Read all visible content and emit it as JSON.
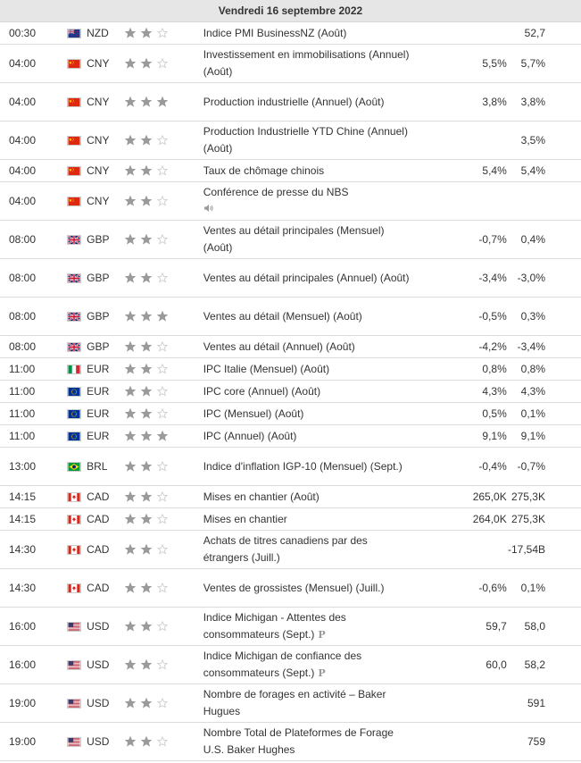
{
  "date_header": "Vendredi 16 septembre 2022",
  "colors": {
    "star_on": "#9a9a9a",
    "star_off": "#cfcfcf"
  },
  "events": [
    {
      "time": "00:30",
      "currency": "NZD",
      "flag": "nz",
      "importance": 2,
      "title": "Indice PMI BusinessNZ (Août)",
      "actual": "",
      "forecast": "",
      "previous": "52,7",
      "marker": "",
      "tall": false
    },
    {
      "time": "04:00",
      "currency": "CNY",
      "flag": "cn",
      "importance": 2,
      "title": "Investissement en immobilisations (Annuel) (Août)",
      "actual": "",
      "forecast": "5,5%",
      "previous": "5,7%",
      "marker": "",
      "tall": true
    },
    {
      "time": "04:00",
      "currency": "CNY",
      "flag": "cn",
      "importance": 3,
      "title": "Production industrielle (Annuel) (Août)",
      "actual": "",
      "forecast": "3,8%",
      "previous": "3,8%",
      "marker": "",
      "tall": true
    },
    {
      "time": "04:00",
      "currency": "CNY",
      "flag": "cn",
      "importance": 2,
      "title": "Production Industrielle YTD Chine (Annuel) (Août)",
      "actual": "",
      "forecast": "",
      "previous": "3,5%",
      "marker": "",
      "tall": true
    },
    {
      "time": "04:00",
      "currency": "CNY",
      "flag": "cn",
      "importance": 2,
      "title": "Taux de chômage chinois",
      "actual": "",
      "forecast": "5,4%",
      "previous": "5,4%",
      "marker": "",
      "tall": false
    },
    {
      "time": "04:00",
      "currency": "CNY",
      "flag": "cn",
      "importance": 2,
      "title": "Conférence de presse du NBS",
      "actual": "",
      "forecast": "",
      "previous": "",
      "marker": "speaker",
      "tall": true
    },
    {
      "time": "08:00",
      "currency": "GBP",
      "flag": "gb",
      "importance": 2,
      "title": "Ventes au détail principales (Mensuel) (Août)",
      "actual": "",
      "forecast": "-0,7%",
      "previous": "0,4%",
      "marker": "",
      "tall": true
    },
    {
      "time": "08:00",
      "currency": "GBP",
      "flag": "gb",
      "importance": 2,
      "title": "Ventes au détail principales (Annuel) (Août)",
      "actual": "",
      "forecast": "-3,4%",
      "previous": "-3,0%",
      "marker": "",
      "tall": true
    },
    {
      "time": "08:00",
      "currency": "GBP",
      "flag": "gb",
      "importance": 3,
      "title": "Ventes au détail (Mensuel) (Août)",
      "actual": "",
      "forecast": "-0,5%",
      "previous": "0,3%",
      "marker": "",
      "tall": true
    },
    {
      "time": "08:00",
      "currency": "GBP",
      "flag": "gb",
      "importance": 2,
      "title": "Ventes au détail (Annuel) (Août)",
      "actual": "",
      "forecast": "-4,2%",
      "previous": "-3,4%",
      "marker": "",
      "tall": false
    },
    {
      "time": "11:00",
      "currency": "EUR",
      "flag": "it",
      "importance": 2,
      "title": "IPC Italie (Mensuel) (Août)",
      "actual": "",
      "forecast": "0,8%",
      "previous": "0,8%",
      "marker": "",
      "tall": false
    },
    {
      "time": "11:00",
      "currency": "EUR",
      "flag": "eu",
      "importance": 2,
      "title": "IPC core (Annuel) (Août)",
      "actual": "",
      "forecast": "4,3%",
      "previous": "4,3%",
      "marker": "",
      "tall": false
    },
    {
      "time": "11:00",
      "currency": "EUR",
      "flag": "eu",
      "importance": 2,
      "title": "IPC (Mensuel) (Août)",
      "actual": "",
      "forecast": "0,5%",
      "previous": "0,1%",
      "marker": "",
      "tall": false
    },
    {
      "time": "11:00",
      "currency": "EUR",
      "flag": "eu",
      "importance": 3,
      "title": "IPC (Annuel) (Août)",
      "actual": "",
      "forecast": "9,1%",
      "previous": "9,1%",
      "marker": "",
      "tall": false
    },
    {
      "time": "13:00",
      "currency": "BRL",
      "flag": "br",
      "importance": 2,
      "title": "Indice d'inflation IGP-10 (Mensuel) (Sept.)",
      "actual": "",
      "forecast": "-0,4%",
      "previous": "-0,7%",
      "marker": "",
      "tall": true
    },
    {
      "time": "14:15",
      "currency": "CAD",
      "flag": "ca",
      "importance": 2,
      "title": "Mises en chantier (Août)",
      "actual": "",
      "forecast": "265,0K",
      "previous": "275,3K",
      "marker": "",
      "tall": false
    },
    {
      "time": "14:15",
      "currency": "CAD",
      "flag": "ca",
      "importance": 2,
      "title": "Mises en chantier",
      "actual": "",
      "forecast": "264,0K",
      "previous": "275,3K",
      "marker": "",
      "tall": false
    },
    {
      "time": "14:30",
      "currency": "CAD",
      "flag": "ca",
      "importance": 2,
      "title": "Achats de titres canadiens par des étrangers (Juill.)",
      "actual": "",
      "forecast": "",
      "previous": "-17,54B",
      "marker": "",
      "tall": true
    },
    {
      "time": "14:30",
      "currency": "CAD",
      "flag": "ca",
      "importance": 2,
      "title": "Ventes de grossistes (Mensuel) (Juill.)",
      "actual": "",
      "forecast": "-0,6%",
      "previous": "0,1%",
      "marker": "",
      "tall": true
    },
    {
      "time": "16:00",
      "currency": "USD",
      "flag": "us",
      "importance": 2,
      "title": "Indice Michigan - Attentes des consommateurs (Sept.)",
      "actual": "",
      "forecast": "59,7",
      "previous": "58,0",
      "marker": "P",
      "tall": true
    },
    {
      "time": "16:00",
      "currency": "USD",
      "flag": "us",
      "importance": 2,
      "title": "Indice Michigan de confiance des consommateurs (Sept.)",
      "actual": "",
      "forecast": "60,0",
      "previous": "58,2",
      "marker": "P",
      "tall": true
    },
    {
      "time": "19:00",
      "currency": "USD",
      "flag": "us",
      "importance": 2,
      "title": "Nombre de forages en activité – Baker Hugues",
      "actual": "",
      "forecast": "",
      "previous": "591",
      "marker": "",
      "tall": true
    },
    {
      "time": "19:00",
      "currency": "USD",
      "flag": "us",
      "importance": 2,
      "title": "Nombre Total de Plateformes de Forage U.S. Baker Hughes",
      "actual": "",
      "forecast": "",
      "previous": "759",
      "marker": "",
      "tall": true
    }
  ]
}
